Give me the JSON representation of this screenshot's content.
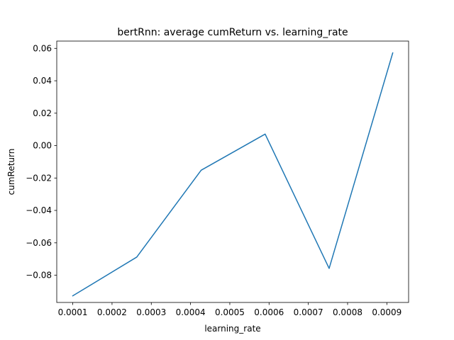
{
  "chart_data": {
    "type": "line",
    "title": "bertRnn: average cumReturn vs. learning_rate",
    "xlabel": "learning_rate",
    "ylabel": "cumReturn",
    "xlim": [
      5.92e-05,
      0.0009554
    ],
    "ylim": [
      -0.0968,
      0.0645
    ],
    "xticks": [
      "0.0001",
      "0.0002",
      "0.0003",
      "0.0004",
      "0.0005",
      "0.0006",
      "0.0007",
      "0.0008",
      "0.0009"
    ],
    "yticks": [
      "0.06",
      "0.04",
      "0.02",
      "0.00",
      "−0.02",
      "−0.04",
      "−0.06",
      "−0.08"
    ],
    "grid": false,
    "legend": "none",
    "series": [
      {
        "color": "#1f77b4",
        "x": [
          0.0001,
          0.000263,
          0.000427,
          0.00059,
          0.000753,
          0.000915
        ],
        "y": [
          -0.0927,
          -0.0688,
          -0.0152,
          0.0071,
          -0.0758,
          0.0572
        ]
      }
    ]
  }
}
